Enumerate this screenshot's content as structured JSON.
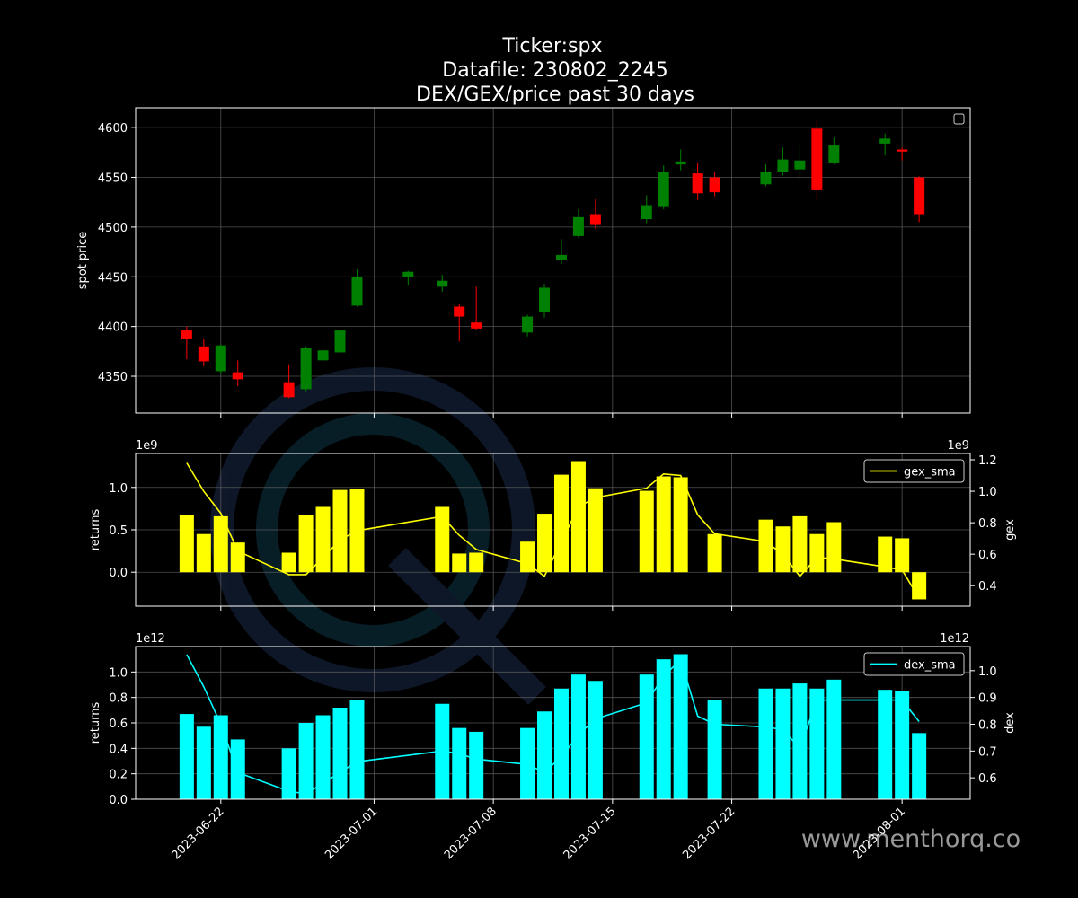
{
  "title_lines": [
    "Ticker:spx",
    "Datafile: 230802_2245",
    "DEX/GEX/price past 30 days"
  ],
  "watermark_text": "www.menthorq.co",
  "x_dates": [
    "2023-06-20",
    "2023-06-21",
    "2023-06-22",
    "2023-06-23",
    "2023-06-26",
    "2023-06-27",
    "2023-06-28",
    "2023-06-29",
    "2023-06-30",
    "2023-07-03",
    "2023-07-05",
    "2023-07-06",
    "2023-07-07",
    "2023-07-10",
    "2023-07-11",
    "2023-07-12",
    "2023-07-13",
    "2023-07-14",
    "2023-07-17",
    "2023-07-18",
    "2023-07-19",
    "2023-07-20",
    "2023-07-21",
    "2023-07-24",
    "2023-07-25",
    "2023-07-26",
    "2023-07-27",
    "2023-07-28",
    "2023-07-31",
    "2023-08-01",
    "2023-08-02"
  ],
  "x_ticks": [
    "2023-06-22",
    "2023-07-01",
    "2023-07-08",
    "2023-07-15",
    "2023-07-22",
    "2023-08-01"
  ],
  "colors": {
    "up": "#008000",
    "down": "#ff0000",
    "gex": "#ffff00",
    "dex": "#00ffff",
    "grid": "#666666",
    "axis": "#ffffff",
    "watermark": "#9aa0a6"
  },
  "chart_data": [
    {
      "type": "candlestick",
      "ylabel": "spot price",
      "ylim": [
        4313,
        4620
      ],
      "yticks": [
        4350,
        4400,
        4450,
        4500,
        4550,
        4600
      ],
      "legend": {
        "position": "top-right",
        "entries": []
      },
      "ohlc": [
        {
          "d": "2023-06-20",
          "o": 4396,
          "h": 4400,
          "l": 4367,
          "c": 4388
        },
        {
          "d": "2023-06-21",
          "o": 4380,
          "h": 4387,
          "l": 4360,
          "c": 4365
        },
        {
          "d": "2023-06-22",
          "o": 4355,
          "h": 4382,
          "l": 4352,
          "c": 4381
        },
        {
          "d": "2023-06-23",
          "o": 4354,
          "h": 4366,
          "l": 4340,
          "c": 4347
        },
        {
          "d": "2023-06-26",
          "o": 4344,
          "h": 4362,
          "l": 4328,
          "c": 4329
        },
        {
          "d": "2023-06-27",
          "o": 4337,
          "h": 4380,
          "l": 4335,
          "c": 4378
        },
        {
          "d": "2023-06-28",
          "o": 4366,
          "h": 4390,
          "l": 4360,
          "c": 4376
        },
        {
          "d": "2023-06-29",
          "o": 4374,
          "h": 4398,
          "l": 4371,
          "c": 4396
        },
        {
          "d": "2023-06-30",
          "o": 4421,
          "h": 4458,
          "l": 4420,
          "c": 4450
        },
        {
          "d": "2023-07-03",
          "o": 4450,
          "h": 4456,
          "l": 4442,
          "c": 4455
        },
        {
          "d": "2023-07-05",
          "o": 4440,
          "h": 4452,
          "l": 4435,
          "c": 4446
        },
        {
          "d": "2023-07-06",
          "o": 4420,
          "h": 4423,
          "l": 4385,
          "c": 4410
        },
        {
          "d": "2023-07-07",
          "o": 4404,
          "h": 4440,
          "l": 4397,
          "c": 4398
        },
        {
          "d": "2023-07-10",
          "o": 4394,
          "h": 4412,
          "l": 4390,
          "c": 4410
        },
        {
          "d": "2023-07-11",
          "o": 4415,
          "h": 4443,
          "l": 4409,
          "c": 4439
        },
        {
          "d": "2023-07-12",
          "o": 4467,
          "h": 4488,
          "l": 4463,
          "c": 4472
        },
        {
          "d": "2023-07-13",
          "o": 4491,
          "h": 4518,
          "l": 4489,
          "c": 4510
        },
        {
          "d": "2023-07-14",
          "o": 4513,
          "h": 4528,
          "l": 4498,
          "c": 4503
        },
        {
          "d": "2023-07-17",
          "o": 4508,
          "h": 4532,
          "l": 4504,
          "c": 4522
        },
        {
          "d": "2023-07-18",
          "o": 4521,
          "h": 4562,
          "l": 4518,
          "c": 4555
        },
        {
          "d": "2023-07-19",
          "o": 4563,
          "h": 4578,
          "l": 4557,
          "c": 4566
        },
        {
          "d": "2023-07-20",
          "o": 4554,
          "h": 4564,
          "l": 4527,
          "c": 4534
        },
        {
          "d": "2023-07-21",
          "o": 4550,
          "h": 4555,
          "l": 4531,
          "c": 4535
        },
        {
          "d": "2023-07-24",
          "o": 4543,
          "h": 4563,
          "l": 4541,
          "c": 4555
        },
        {
          "d": "2023-07-25",
          "o": 4555,
          "h": 4580,
          "l": 4552,
          "c": 4568
        },
        {
          "d": "2023-07-26",
          "o": 4558,
          "h": 4582,
          "l": 4548,
          "c": 4567
        },
        {
          "d": "2023-07-27",
          "o": 4599,
          "h": 4607,
          "l": 4528,
          "c": 4537
        },
        {
          "d": "2023-07-28",
          "o": 4565,
          "h": 4590,
          "l": 4563,
          "c": 4582
        },
        {
          "d": "2023-07-31",
          "o": 4584,
          "h": 4594,
          "l": 4572,
          "c": 4589
        },
        {
          "d": "2023-08-01",
          "o": 4578,
          "h": 4580,
          "l": 4567,
          "c": 4576
        },
        {
          "d": "2023-08-02",
          "o": 4550,
          "h": 4551,
          "l": 4505,
          "c": 4513
        }
      ]
    },
    {
      "type": "bar",
      "ylabel": "returns",
      "ylabel_right": "gex",
      "y_offset_label": "1e9",
      "y_offset_label_right": "1e9",
      "ylim": [
        -0.4,
        1.4
      ],
      "yticks": [
        0.0,
        0.5,
        1.0
      ],
      "ylim_right": [
        0.27,
        1.24
      ],
      "yticks_right": [
        0.4,
        0.6,
        0.8,
        1.0,
        1.2
      ],
      "legend": {
        "position": "top-right",
        "entries": [
          "gex_sma"
        ]
      },
      "values": [
        0.68,
        0.45,
        0.66,
        0.35,
        0.23,
        0.67,
        0.77,
        0.97,
        0.98,
        null,
        0.77,
        0.22,
        0.23,
        0.36,
        0.69,
        1.15,
        1.31,
        0.99,
        0.96,
        1.13,
        1.12,
        null,
        0.45,
        0.62,
        0.54,
        0.66,
        0.45,
        0.59,
        0.42,
        0.4,
        -0.32
      ],
      "series": [
        {
          "name": "gex_sma",
          "values": [
            1.18,
            1.0,
            0.86,
            0.62,
            0.47,
            0.47,
            0.58,
            0.69,
            0.75,
            null,
            0.84,
            0.72,
            0.63,
            0.54,
            0.46,
            0.68,
            0.9,
            0.96,
            1.02,
            1.11,
            1.1,
            0.85,
            0.73,
            0.68,
            0.6,
            0.46,
            0.58,
            0.57,
            0.52,
            0.5,
            0.32
          ]
        }
      ]
    },
    {
      "type": "bar",
      "ylabel": "returns",
      "ylabel_right": "dex",
      "y_offset_label": "1e12",
      "y_offset_label_right": "1e12",
      "ylim": [
        0.0,
        1.2
      ],
      "yticks": [
        0.0,
        0.2,
        0.4,
        0.6,
        0.8,
        1.0
      ],
      "ylim_right": [
        0.52,
        1.09
      ],
      "yticks_right": [
        0.6,
        0.7,
        0.8,
        0.9,
        1.0
      ],
      "legend": {
        "position": "top-right",
        "entries": [
          "dex_sma"
        ]
      },
      "values": [
        0.67,
        0.57,
        0.66,
        0.47,
        0.4,
        0.6,
        0.66,
        0.72,
        0.78,
        null,
        0.75,
        0.56,
        0.53,
        0.56,
        0.69,
        0.87,
        0.98,
        0.93,
        0.98,
        1.1,
        1.14,
        null,
        0.78,
        0.87,
        0.87,
        0.91,
        0.87,
        0.94,
        0.86,
        0.85,
        0.52
      ],
      "series": [
        {
          "name": "dex_sma",
          "values": [
            1.06,
            0.94,
            0.8,
            0.62,
            0.55,
            0.54,
            0.58,
            0.62,
            0.66,
            null,
            0.7,
            0.69,
            0.67,
            0.65,
            0.62,
            0.68,
            0.76,
            0.82,
            0.88,
            0.98,
            1.04,
            0.83,
            0.8,
            0.79,
            0.78,
            0.71,
            0.89,
            0.89,
            0.89,
            0.89,
            0.81
          ]
        }
      ]
    }
  ]
}
